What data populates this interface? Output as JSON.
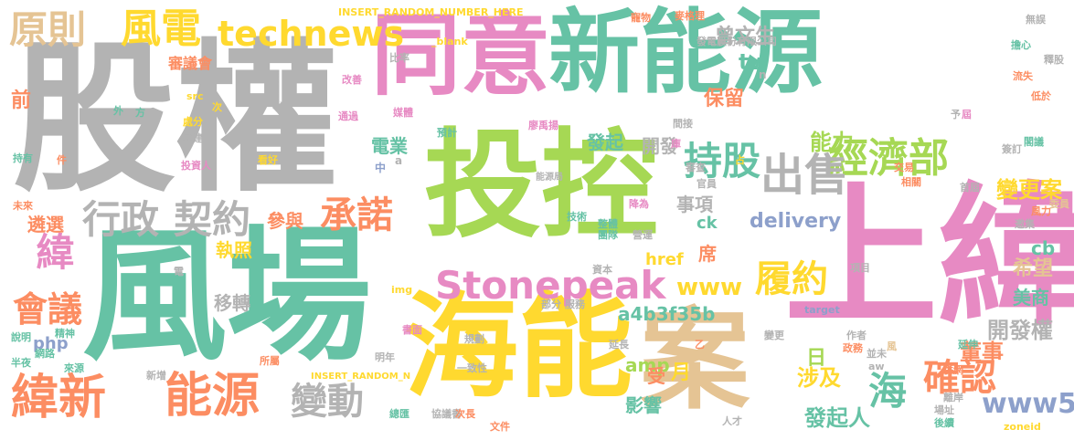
{
  "palette": {
    "gray": "#b3b3b3",
    "teal": "#66c2a5",
    "pink": "#e78ac3",
    "green": "#a6d854",
    "yellow": "#ffd92f",
    "tan": "#e5c494",
    "orange": "#fc8d62",
    "blue": "#8da0cb"
  },
  "words": [
    {
      "text": "股權",
      "color": "gray"
    },
    {
      "text": "同意",
      "color": "pink"
    },
    {
      "text": "新能源",
      "color": "teal"
    },
    {
      "text": "投控",
      "color": "green"
    },
    {
      "text": "上緯",
      "color": "pink"
    },
    {
      "text": "風場",
      "color": "teal"
    },
    {
      "text": "海能",
      "color": "yellow"
    },
    {
      "text": "案",
      "color": "tan"
    },
    {
      "text": "緯新",
      "color": "orange"
    },
    {
      "text": "能源",
      "color": "orange"
    },
    {
      "text": "原則",
      "color": "tan"
    },
    {
      "text": "風電",
      "color": "yellow"
    },
    {
      "text": "technews",
      "color": "yellow"
    },
    {
      "text": "經濟部",
      "color": "green"
    },
    {
      "text": "出售",
      "color": "gray"
    },
    {
      "text": "持股",
      "color": "teal"
    },
    {
      "text": "行政",
      "color": "gray"
    },
    {
      "text": "契約",
      "color": "gray"
    },
    {
      "text": "Stonepeak",
      "color": "pink"
    },
    {
      "text": "履約",
      "color": "yellow"
    },
    {
      "text": "確認",
      "color": "orange"
    },
    {
      "text": "變動",
      "color": "gray"
    },
    {
      "text": "承諾",
      "color": "orange"
    },
    {
      "text": "會議",
      "color": "orange"
    },
    {
      "text": "緯",
      "color": "pink"
    },
    {
      "text": "海",
      "color": "teal"
    },
    {
      "text": "www5",
      "color": "blue"
    },
    {
      "text": "能力",
      "color": "green"
    },
    {
      "text": "變更案",
      "color": "yellow"
    },
    {
      "text": "delivery",
      "color": "blue"
    },
    {
      "text": "www",
      "color": "yellow"
    },
    {
      "text": "a4b3f35b",
      "color": "teal"
    },
    {
      "text": "發起人",
      "color": "teal"
    },
    {
      "text": "涉及",
      "color": "yellow"
    },
    {
      "text": "董事",
      "color": "orange"
    },
    {
      "text": "開發權",
      "color": "gray"
    },
    {
      "text": "希望",
      "color": "tan"
    },
    {
      "text": "美商",
      "color": "teal"
    },
    {
      "text": "cb",
      "color": "teal"
    },
    {
      "text": "月",
      "color": "yellow"
    },
    {
      "text": "日",
      "color": "green"
    },
    {
      "text": "保留",
      "color": "orange"
    },
    {
      "text": "tw",
      "color": "teal"
    },
    {
      "text": "曾文生",
      "color": "gray"
    },
    {
      "text": "電業",
      "color": "teal"
    },
    {
      "text": "發起",
      "color": "teal"
    },
    {
      "text": "開發",
      "color": "gray"
    },
    {
      "text": "事項",
      "color": "gray"
    },
    {
      "text": "參與",
      "color": "orange"
    },
    {
      "text": "執照",
      "color": "yellow"
    },
    {
      "text": "遴選",
      "color": "orange"
    },
    {
      "text": "移轉",
      "color": "gray"
    },
    {
      "text": "php",
      "color": "blue"
    },
    {
      "text": "amp",
      "color": "green"
    },
    {
      "text": "href",
      "color": "yellow"
    },
    {
      "text": "ck",
      "color": "teal"
    },
    {
      "text": "席",
      "color": "orange"
    },
    {
      "text": "影響",
      "color": "teal"
    },
    {
      "text": "受",
      "color": "orange"
    },
    {
      "text": "前",
      "color": "orange"
    },
    {
      "text": "審議會",
      "color": "orange"
    },
    {
      "text": "能源局",
      "color": "gray"
    },
    {
      "text": "INSERT_RANDOM_NUMBER_HERE",
      "color": "yellow"
    },
    {
      "text": "INSERT_RANDOM_N",
      "color": "yellow"
    },
    {
      "text": "_blank",
      "color": "yellow"
    },
    {
      "text": "發電股份有限公司",
      "color": "gray"
    },
    {
      "text": "麥格理",
      "color": "orange"
    },
    {
      "text": "比率",
      "color": "gray"
    },
    {
      "text": "改善",
      "color": "pink"
    },
    {
      "text": "媒體",
      "color": "pink"
    },
    {
      "text": "預計",
      "color": "teal"
    },
    {
      "text": "廖禹揚",
      "color": "pink"
    },
    {
      "text": "一致性",
      "color": "gray"
    },
    {
      "text": "協議書",
      "color": "gray"
    },
    {
      "text": "文件",
      "color": "orange"
    },
    {
      "text": "次長",
      "color": "orange"
    },
    {
      "text": "總匯",
      "color": "teal"
    },
    {
      "text": "明年",
      "color": "gray"
    },
    {
      "text": "新增",
      "color": "gray"
    },
    {
      "text": "所屬",
      "color": "orange"
    },
    {
      "text": "精神",
      "color": "teal"
    },
    {
      "text": "半夜",
      "color": "teal"
    },
    {
      "text": "來源",
      "color": "teal"
    },
    {
      "text": "網路",
      "color": "teal"
    },
    {
      "text": "說明",
      "color": "teal"
    },
    {
      "text": "未來",
      "color": "orange"
    },
    {
      "text": "持有",
      "color": "teal"
    },
    {
      "text": "外",
      "color": "teal"
    },
    {
      "text": "方",
      "color": "teal"
    },
    {
      "text": "src",
      "color": "yellow"
    },
    {
      "text": "次",
      "color": "yellow"
    },
    {
      "text": "通過",
      "color": "pink"
    },
    {
      "text": "處分",
      "color": "yellow"
    },
    {
      "text": "興建",
      "color": "gray"
    },
    {
      "text": "投資人",
      "color": "pink"
    },
    {
      "text": "看好",
      "color": "yellow"
    },
    {
      "text": "件",
      "color": "orange"
    },
    {
      "text": "書面",
      "color": "pink"
    },
    {
      "text": "img",
      "color": "yellow"
    },
    {
      "text": "規劃",
      "color": "gray"
    },
    {
      "text": "服務",
      "color": "gray"
    },
    {
      "text": "部分",
      "color": "gray"
    },
    {
      "text": "資本",
      "color": "gray"
    },
    {
      "text": "團隊",
      "color": "teal"
    },
    {
      "text": "技術",
      "color": "teal"
    },
    {
      "text": "營運",
      "color": "gray"
    },
    {
      "text": "降為",
      "color": "pink"
    },
    {
      "text": "整體",
      "color": "teal"
    },
    {
      "text": "官員",
      "color": "gray"
    },
    {
      "text": "審查",
      "color": "gray"
    },
    {
      "text": "庫",
      "color": "pink"
    },
    {
      "text": "間接",
      "color": "gray"
    },
    {
      "text": "占",
      "color": "yellow"
    },
    {
      "text": "交易",
      "color": "orange"
    },
    {
      "text": "首屆",
      "color": "gray"
    },
    {
      "text": "項目",
      "color": "gray"
    },
    {
      "text": "相關",
      "color": "orange"
    },
    {
      "text": "簽訂",
      "color": "gray"
    },
    {
      "text": "委員",
      "color": "tan"
    },
    {
      "text": "風力",
      "color": "orange"
    },
    {
      "text": "邀集",
      "color": "gray"
    },
    {
      "text": "閣議",
      "color": "teal"
    },
    {
      "text": "低於",
      "color": "orange"
    },
    {
      "text": "流失",
      "color": "orange"
    },
    {
      "text": "擔心",
      "color": "teal"
    },
    {
      "text": "釋股",
      "color": "gray"
    },
    {
      "text": "無誤",
      "color": "gray"
    },
    {
      "text": "屆",
      "color": "pink"
    },
    {
      "text": "予",
      "color": "gray"
    },
    {
      "text": "n",
      "color": "gray"
    },
    {
      "text": "a",
      "color": "gray"
    },
    {
      "text": "中",
      "color": "blue"
    },
    {
      "text": "寵物",
      "color": "orange"
    },
    {
      "text": "延長",
      "color": "gray"
    },
    {
      "text": "變更",
      "color": "gray"
    },
    {
      "text": "作者",
      "color": "gray"
    },
    {
      "text": "政務",
      "color": "orange"
    },
    {
      "text": "並未",
      "color": "gray"
    },
    {
      "text": "風",
      "color": "tan"
    },
    {
      "text": "延伸",
      "color": "teal"
    },
    {
      "text": "併網",
      "color": "orange"
    },
    {
      "text": "離岸",
      "color": "gray"
    },
    {
      "text": "場址",
      "color": "gray"
    },
    {
      "text": "後續",
      "color": "teal"
    },
    {
      "text": "zoneid",
      "color": "yellow"
    },
    {
      "text": "人才",
      "color": "gray"
    },
    {
      "text": "aw",
      "color": "gray"
    },
    {
      "text": "target",
      "color": "blue"
    },
    {
      "text": "乙",
      "color": "orange"
    },
    {
      "text": "電",
      "color": "gray"
    }
  ]
}
